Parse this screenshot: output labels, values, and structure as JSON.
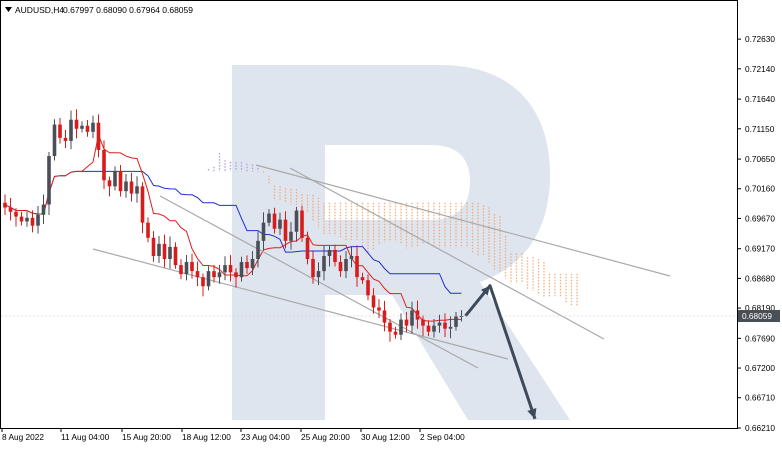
{
  "header": {
    "symbol": "AUDUSD,H4",
    "ohlc": "0.67997 0.68090 0.67964 0.68059"
  },
  "colors": {
    "bull": "#4a4e57",
    "bear": "#d81c1c",
    "tenkan": "#e01e1e",
    "kijun": "#1f2fd4",
    "kumo_bear": "#f0a36a",
    "kumo_bull": "#a48fd4",
    "channel": "#a9a9a9",
    "arrow": "#3d4a5a",
    "logo": "#dfe5ef",
    "current_price_bg": "#4a4e57"
  },
  "chart_data": {
    "type": "candlestick",
    "title": "AUDUSD,H4",
    "ylim": [
      0.6621,
      0.7288
    ],
    "y_ticks": [
      "0.72630",
      "0.72140",
      "0.71640",
      "0.71150",
      "0.70650",
      "0.70160",
      "0.69670",
      "0.69170",
      "0.68680",
      "0.68190",
      "0.67690",
      "0.67200",
      "0.66710",
      "0.66210"
    ],
    "x_ticks": [
      "8 Aug 2022",
      "11 Aug 04:00",
      "15 Aug 20:00",
      "18 Aug 12:00",
      "23 Aug 04:00",
      "25 Aug 20:00",
      "30 Aug 12:00",
      "2 Sep 04:00"
    ],
    "current_price": "0.68059",
    "closes": [
      0.6985,
      0.6978,
      0.697,
      0.6962,
      0.6968,
      0.6955,
      0.6973,
      0.699,
      0.707,
      0.7122,
      0.71,
      0.7095,
      0.713,
      0.7115,
      0.712,
      0.711,
      0.7125,
      0.708,
      0.703,
      0.702,
      0.7045,
      0.7012,
      0.7028,
      0.7008,
      0.702,
      0.696,
      0.6935,
      0.6905,
      0.6925,
      0.69,
      0.692,
      0.689,
      0.6875,
      0.6895,
      0.688,
      0.687,
      0.6855,
      0.688,
      0.687,
      0.6878,
      0.689,
      0.6878,
      0.687,
      0.6895,
      0.6885,
      0.69,
      0.693,
      0.696,
      0.6975,
      0.695,
      0.6965,
      0.693,
      0.6945,
      0.698,
      0.6935,
      0.69,
      0.687,
      0.688,
      0.6905,
      0.6915,
      0.6895,
      0.688,
      0.69,
      0.6905,
      0.687,
      0.6865,
      0.684,
      0.682,
      0.6815,
      0.6795,
      0.678,
      0.6775,
      0.68,
      0.679,
      0.6815,
      0.68,
      0.679,
      0.678,
      0.679,
      0.6795,
      0.6785,
      0.6788,
      0.6805,
      0.6806
    ]
  },
  "forecast": {
    "up_target": 0.6856,
    "down_target": 0.6636
  }
}
